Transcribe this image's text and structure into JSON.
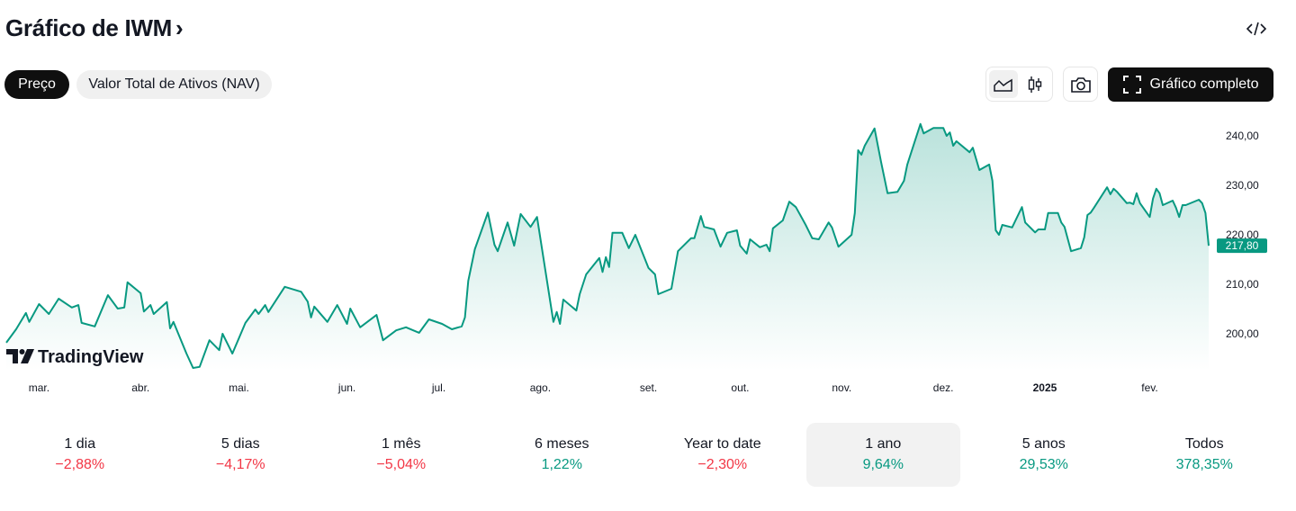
{
  "header": {
    "title": "Gráfico de IWM",
    "chevron": "›",
    "embed_icon": "code-icon"
  },
  "tabs": [
    {
      "label": "Preço",
      "active": true
    },
    {
      "label": "Valor Total de Ativos (NAV)",
      "active": false
    }
  ],
  "toolbar": {
    "chart_styles": [
      {
        "icon": "area-chart-icon",
        "active": true
      },
      {
        "icon": "candlestick-icon",
        "active": false
      }
    ],
    "snapshot_icon": "camera-icon",
    "fullscreen_label": "Gráfico completo",
    "fullscreen_icon": "fullscreen-icon"
  },
  "logo": {
    "text": "TradingView"
  },
  "colors": {
    "line": "#089981",
    "positive": "#089981",
    "negative": "#f23645",
    "button_dark": "#0f0f0f"
  },
  "chart_data": {
    "type": "area",
    "title": "",
    "xlabel": "",
    "ylabel": "",
    "ylim": [
      193,
      243.8
    ],
    "grid": false,
    "y_ticks": [
      "200,00",
      "210,00",
      "220,00",
      "230,00",
      "240,00"
    ],
    "y_tick_values": [
      200,
      210,
      220,
      230,
      240
    ],
    "last_price_label": "217,80",
    "last_price": 217.8,
    "x_ticks": [
      {
        "label": "mar.",
        "date": "2024-03-01",
        "bold": false
      },
      {
        "label": "abr.",
        "date": "2024-04-01",
        "bold": false
      },
      {
        "label": "mai.",
        "date": "2024-05-01",
        "bold": false
      },
      {
        "label": "jun.",
        "date": "2024-06-03",
        "bold": false
      },
      {
        "label": "jul.",
        "date": "2024-07-01",
        "bold": false
      },
      {
        "label": "ago.",
        "date": "2024-08-01",
        "bold": false
      },
      {
        "label": "set.",
        "date": "2024-09-03",
        "bold": false
      },
      {
        "label": "out.",
        "date": "2024-10-01",
        "bold": false
      },
      {
        "label": "nov.",
        "date": "2024-11-01",
        "bold": false
      },
      {
        "label": "dez.",
        "date": "2024-12-02",
        "bold": false
      },
      {
        "label": "2025",
        "date": "2025-01-02",
        "bold": true
      },
      {
        "label": "fev.",
        "date": "2025-02-03",
        "bold": false
      }
    ],
    "x": [
      "2024-02-20",
      "2024-02-23",
      "2024-02-26",
      "2024-02-27",
      "2024-03-01",
      "2024-03-04",
      "2024-03-07",
      "2024-03-11",
      "2024-03-13",
      "2024-03-14",
      "2024-03-18",
      "2024-03-21",
      "2024-03-22",
      "2024-03-25",
      "2024-03-27",
      "2024-03-28",
      "2024-04-01",
      "2024-04-02",
      "2024-04-04",
      "2024-04-05",
      "2024-04-09",
      "2024-04-10",
      "2024-04-11",
      "2024-04-15",
      "2024-04-17",
      "2024-04-19",
      "2024-04-22",
      "2024-04-25",
      "2024-04-26",
      "2024-04-29",
      "2024-05-03",
      "2024-05-06",
      "2024-05-07",
      "2024-05-09",
      "2024-05-10",
      "2024-05-15",
      "2024-05-20",
      "2024-05-22",
      "2024-05-23",
      "2024-05-24",
      "2024-05-28",
      "2024-05-31",
      "2024-06-03",
      "2024-06-04",
      "2024-06-07",
      "2024-06-12",
      "2024-06-14",
      "2024-06-18",
      "2024-06-21",
      "2024-06-25",
      "2024-06-28",
      "2024-07-02",
      "2024-07-05",
      "2024-07-08",
      "2024-07-09",
      "2024-07-10",
      "2024-07-12",
      "2024-07-16",
      "2024-07-18",
      "2024-07-19",
      "2024-07-22",
      "2024-07-24",
      "2024-07-26",
      "2024-07-29",
      "2024-07-31",
      "2024-08-05",
      "2024-08-06",
      "2024-08-07",
      "2024-08-08",
      "2024-08-12",
      "2024-08-13",
      "2024-08-15",
      "2024-08-19",
      "2024-08-20",
      "2024-08-21",
      "2024-08-22",
      "2024-08-23",
      "2024-08-26",
      "2024-08-28",
      "2024-08-30",
      "2024-09-03",
      "2024-09-05",
      "2024-09-06",
      "2024-09-10",
      "2024-09-12",
      "2024-09-16",
      "2024-09-17",
      "2024-09-19",
      "2024-09-20",
      "2024-09-23",
      "2024-09-25",
      "2024-09-27",
      "2024-09-30",
      "2024-10-01",
      "2024-10-03",
      "2024-10-04",
      "2024-10-07",
      "2024-10-09",
      "2024-10-10",
      "2024-10-11",
      "2024-10-14",
      "2024-10-16",
      "2024-10-18",
      "2024-10-21",
      "2024-10-23",
      "2024-10-25",
      "2024-10-28",
      "2024-10-29",
      "2024-10-31",
      "2024-11-04",
      "2024-11-05",
      "2024-11-06",
      "2024-11-07",
      "2024-11-08",
      "2024-11-11",
      "2024-11-13",
      "2024-11-15",
      "2024-11-18",
      "2024-11-20",
      "2024-11-21",
      "2024-11-25",
      "2024-11-26",
      "2024-11-29",
      "2024-12-02",
      "2024-12-03",
      "2024-12-04",
      "2024-12-05",
      "2024-12-06",
      "2024-12-10",
      "2024-12-11",
      "2024-12-13",
      "2024-12-16",
      "2024-12-17",
      "2024-12-18",
      "2024-12-19",
      "2024-12-20",
      "2024-12-23",
      "2024-12-26",
      "2024-12-27",
      "2024-12-30",
      "2024-12-31",
      "2025-01-02",
      "2025-01-03",
      "2025-01-06",
      "2025-01-07",
      "2025-01-08",
      "2025-01-10",
      "2025-01-13",
      "2025-01-14",
      "2025-01-15",
      "2025-01-16",
      "2025-01-17",
      "2025-01-21",
      "2025-01-22",
      "2025-01-23",
      "2025-01-24",
      "2025-01-27",
      "2025-01-28",
      "2025-01-29",
      "2025-01-30",
      "2025-01-31",
      "2025-02-03",
      "2025-02-04",
      "2025-02-05",
      "2025-02-06",
      "2025-02-07",
      "2025-02-10",
      "2025-02-11",
      "2025-02-12",
      "2025-02-13",
      "2025-02-14",
      "2025-02-18",
      "2025-02-19",
      "2025-02-20",
      "2025-02-21"
    ],
    "values": [
      198.2,
      200.9,
      204.2,
      202.4,
      206.0,
      204.0,
      207.1,
      205.3,
      205.8,
      202.2,
      201.5,
      206.2,
      207.8,
      205.1,
      205.3,
      210.4,
      208.2,
      204.5,
      205.8,
      204.0,
      206.4,
      201.1,
      202.4,
      196.0,
      193.1,
      193.3,
      198.7,
      196.7,
      200.0,
      196.0,
      202.2,
      204.9,
      204.0,
      205.8,
      204.4,
      209.5,
      208.5,
      206.5,
      203.3,
      205.5,
      202.4,
      205.8,
      202.0,
      205.1,
      201.3,
      203.8,
      198.7,
      200.7,
      201.3,
      200.2,
      202.9,
      202.0,
      200.9,
      201.5,
      203.3,
      210.7,
      217.1,
      224.5,
      218.0,
      216.7,
      222.5,
      217.8,
      224.2,
      221.6,
      223.6,
      202.4,
      204.4,
      202.0,
      206.9,
      204.7,
      208.0,
      212.0,
      215.3,
      212.5,
      215.5,
      213.5,
      220.4,
      220.4,
      217.3,
      220.0,
      213.3,
      212.0,
      208.0,
      209.1,
      216.7,
      219.3,
      219.3,
      223.8,
      221.6,
      221.1,
      217.6,
      220.4,
      220.9,
      217.8,
      216.2,
      219.1,
      217.5,
      218.0,
      216.7,
      221.3,
      222.9,
      226.7,
      225.6,
      222.0,
      219.3,
      219.1,
      222.5,
      221.5,
      217.6,
      220.0,
      224.4,
      237.1,
      236.2,
      238.0,
      241.5,
      234.7,
      228.4,
      228.7,
      230.9,
      234.2,
      242.4,
      240.5,
      241.6,
      241.6,
      240.0,
      240.7,
      238.0,
      238.9,
      236.7,
      237.6,
      233.1,
      234.2,
      230.9,
      220.9,
      220.0,
      222.0,
      221.5,
      225.6,
      222.5,
      220.5,
      221.1,
      221.1,
      224.4,
      224.4,
      222.5,
      221.6,
      216.7,
      217.3,
      219.5,
      224.0,
      224.5,
      225.5,
      229.6,
      228.2,
      229.3,
      228.7,
      226.4,
      226.5,
      226.2,
      228.4,
      226.4,
      223.6,
      227.3,
      229.3,
      228.4,
      226.0,
      226.9,
      225.5,
      223.6,
      226.0,
      226.0,
      227.1,
      226.4,
      224.4,
      217.8
    ]
  },
  "periods": [
    {
      "label": "1 dia",
      "value": "−2,88%",
      "direction": "negative",
      "selected": false
    },
    {
      "label": "5 dias",
      "value": "−4,17%",
      "direction": "negative",
      "selected": false
    },
    {
      "label": "1 mês",
      "value": "−5,04%",
      "direction": "negative",
      "selected": false
    },
    {
      "label": "6 meses",
      "value": "1,22%",
      "direction": "positive",
      "selected": false
    },
    {
      "label": "Year to date",
      "value": "−2,30%",
      "direction": "negative",
      "selected": false
    },
    {
      "label": "1 ano",
      "value": "9,64%",
      "direction": "positive",
      "selected": true
    },
    {
      "label": "5 anos",
      "value": "29,53%",
      "direction": "positive",
      "selected": false
    },
    {
      "label": "Todos",
      "value": "378,35%",
      "direction": "positive",
      "selected": false
    }
  ]
}
